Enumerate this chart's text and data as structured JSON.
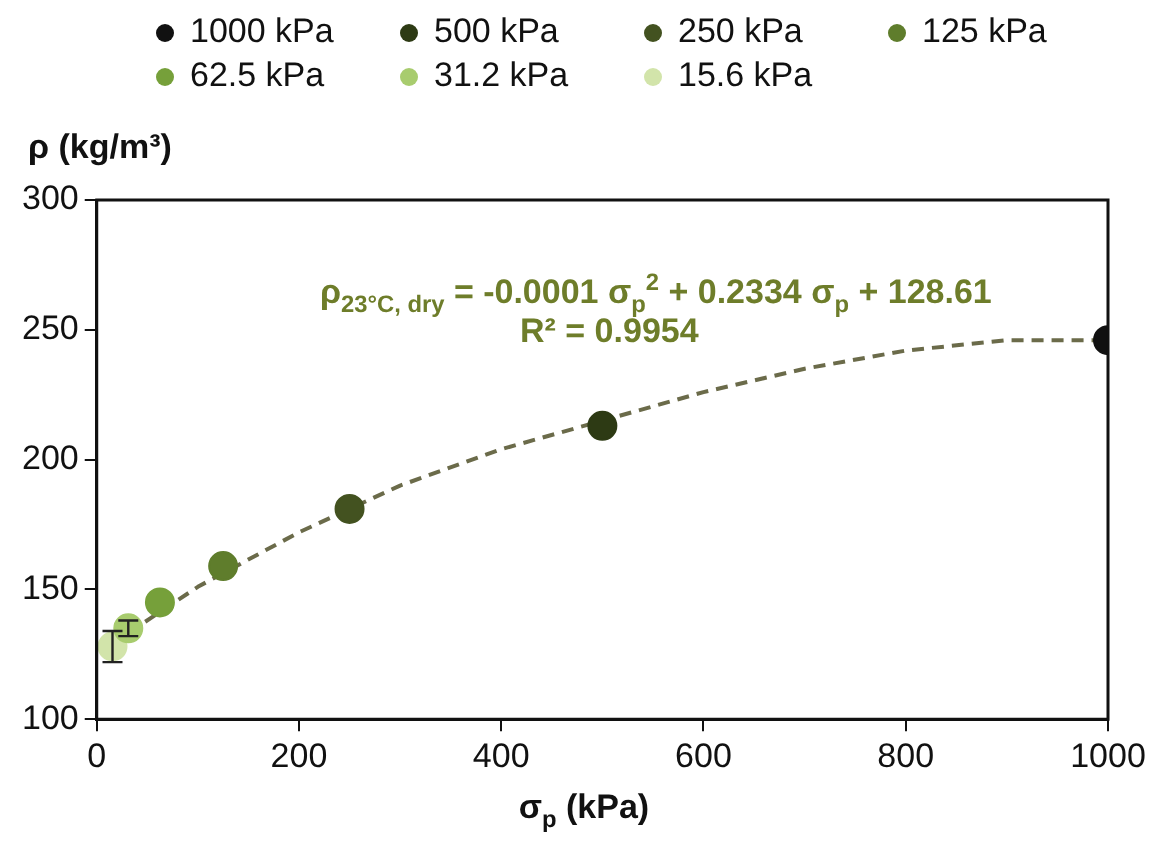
{
  "chart_data": {
    "type": "scatter",
    "xlabel": "σ$_{p}$ (kPa)",
    "ylabel": "ρ (kg/m³)",
    "annotations": [
      "ρ$_{23°C, dry}$ = -0.0001 σ$_{p}$$^{2}$ + 0.2334 σ$_{p}$ + 128.61",
      "R² = 0.9954"
    ],
    "xlim": [
      0,
      1000
    ],
    "xticks": [
      0,
      200,
      400,
      600,
      800,
      1000
    ],
    "ylim": [
      100,
      300
    ],
    "yticks": [
      100,
      150,
      200,
      250,
      300
    ],
    "grid": false,
    "legend": "top",
    "marker": "circle",
    "series": [
      {
        "name": "1000 kPa",
        "color": "#111111",
        "x": [
          1000
        ],
        "values": [
          246
        ]
      },
      {
        "name": "500 kPa",
        "color": "#2d3a14",
        "x": [
          500
        ],
        "values": [
          213
        ]
      },
      {
        "name": "250 kPa",
        "color": "#435220",
        "x": [
          250
        ],
        "values": [
          181
        ]
      },
      {
        "name": "125 kPa",
        "color": "#5f7d2c",
        "x": [
          125
        ],
        "values": [
          159
        ]
      },
      {
        "name": "62.5 kPa",
        "color": "#76a03a",
        "x": [
          62.5
        ],
        "values": [
          145
        ]
      },
      {
        "name": "31.2 kPa",
        "color": "#a8cc6e",
        "x": [
          31.2
        ],
        "values": [
          135
        ],
        "errors": [
          3
        ]
      },
      {
        "name": "15.6 kPa",
        "color": "#d2e4aa",
        "x": [
          15.6
        ],
        "values": [
          128
        ],
        "errors": [
          6
        ]
      },
      {
        "type": "line",
        "color": "#6b6b4a",
        "line_style": "dashed",
        "marker": "none",
        "x": [
          15,
          100,
          200,
          300,
          400,
          500,
          600,
          700,
          800,
          900,
          1000
        ],
        "values": [
          129,
          151,
          172,
          190,
          204,
          215,
          226,
          235,
          242,
          246,
          246
        ]
      }
    ]
  }
}
